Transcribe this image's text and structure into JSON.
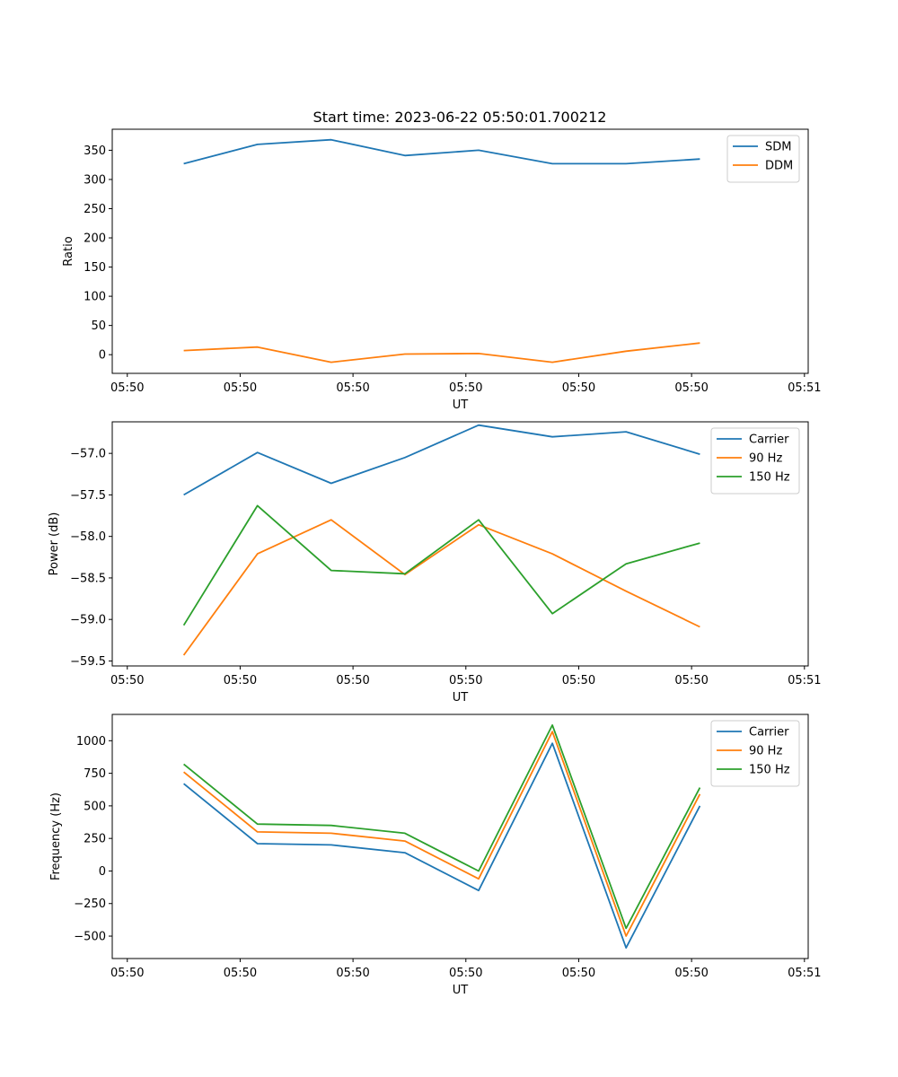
{
  "figure_title": "Start time: 2023-06-22 05:50:01.700212",
  "colors": {
    "blue": "#1f77b4",
    "orange": "#ff7f0e",
    "green": "#2ca02c"
  },
  "chart_data": [
    {
      "type": "line",
      "title": "Start time: 2023-06-22 05:50:01.700212",
      "xlabel": "UT",
      "ylabel": "Ratio",
      "xlim": [
        0.0,
        9.25
      ],
      "ylim": [
        -32,
        386
      ],
      "x_ticks": [
        0.2,
        1.7,
        3.2,
        4.7,
        6.2,
        7.7,
        9.2
      ],
      "x_tick_labels": [
        "05:50",
        "05:50",
        "05:50",
        "05:50",
        "05:50",
        "05:50",
        "05:51"
      ],
      "y_ticks": [
        0,
        50,
        100,
        150,
        200,
        250,
        300,
        350
      ],
      "y_tick_labels": [
        "0",
        "50",
        "100",
        "150",
        "200",
        "250",
        "300",
        "350"
      ],
      "x": [
        0.95,
        1.93,
        2.91,
        3.89,
        4.87,
        5.85,
        6.83,
        7.81
      ],
      "series": [
        {
          "name": "SDM",
          "color": "#1f77b4",
          "values": [
            327,
            360,
            368,
            341,
            350,
            327,
            327,
            335
          ]
        },
        {
          "name": "DDM",
          "color": "#ff7f0e",
          "values": [
            7,
            13,
            -13,
            1,
            2,
            -13,
            6,
            20
          ]
        }
      ],
      "legend": "top-right",
      "grid": false
    },
    {
      "type": "line",
      "xlabel": "UT",
      "ylabel": "Power (dB)",
      "xlim": [
        0.0,
        9.25
      ],
      "ylim": [
        -59.56,
        -56.62
      ],
      "x_ticks": [
        0.2,
        1.7,
        3.2,
        4.7,
        6.2,
        7.7,
        9.2
      ],
      "x_tick_labels": [
        "05:50",
        "05:50",
        "05:50",
        "05:50",
        "05:50",
        "05:50",
        "05:51"
      ],
      "y_ticks": [
        -59.5,
        -59.0,
        -58.5,
        -58.0,
        -57.5,
        -57.0
      ],
      "y_tick_labels": [
        "−59.5",
        "−59.0",
        "−58.5",
        "−58.0",
        "−57.5",
        "−57.0"
      ],
      "x": [
        0.95,
        1.93,
        2.91,
        3.89,
        4.87,
        5.85,
        6.83,
        7.81
      ],
      "series": [
        {
          "name": "Carrier",
          "color": "#1f77b4",
          "values": [
            -57.5,
            -56.99,
            -57.36,
            -57.05,
            -56.66,
            -56.8,
            -56.74,
            -57.01
          ]
        },
        {
          "name": "90 Hz",
          "color": "#ff7f0e",
          "values": [
            -59.43,
            -58.21,
            -57.8,
            -58.46,
            -57.86,
            -58.21,
            -58.66,
            -59.09
          ]
        },
        {
          "name": "150 Hz",
          "color": "#2ca02c",
          "values": [
            -59.07,
            -57.63,
            -58.41,
            -58.45,
            -57.8,
            -58.93,
            -58.33,
            -58.08
          ]
        }
      ],
      "legend": "top-right",
      "grid": false
    },
    {
      "type": "line",
      "xlabel": "UT",
      "ylabel": "Frequency (Hz)",
      "xlim": [
        0.0,
        9.25
      ],
      "ylim": [
        -672,
        1202
      ],
      "x_ticks": [
        0.2,
        1.7,
        3.2,
        4.7,
        6.2,
        7.7,
        9.2
      ],
      "x_tick_labels": [
        "05:50",
        "05:50",
        "05:50",
        "05:50",
        "05:50",
        "05:50",
        "05:51"
      ],
      "y_ticks": [
        -500,
        -250,
        0,
        250,
        500,
        750,
        1000
      ],
      "y_tick_labels": [
        "−500",
        "−250",
        "0",
        "250",
        "500",
        "750",
        "1000"
      ],
      "x": [
        0.95,
        1.93,
        2.91,
        3.89,
        4.87,
        5.85,
        6.83,
        7.81
      ],
      "series": [
        {
          "name": "Carrier",
          "color": "#1f77b4",
          "values": [
            670,
            210,
            200,
            140,
            -150,
            980,
            -590,
            500
          ]
        },
        {
          "name": "90 Hz",
          "color": "#ff7f0e",
          "values": [
            760,
            300,
            290,
            230,
            -60,
            1070,
            -500,
            590
          ]
        },
        {
          "name": "150 Hz",
          "color": "#2ca02c",
          "values": [
            820,
            360,
            350,
            290,
            0,
            1120,
            -440,
            640
          ]
        }
      ],
      "legend": "top-right",
      "grid": false
    }
  ]
}
